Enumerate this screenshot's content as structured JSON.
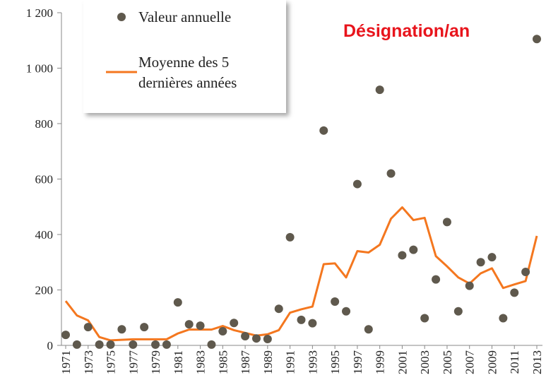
{
  "chart_data": {
    "type": "scatter",
    "annotation": "Désignation/an",
    "x": [
      1971,
      1972,
      1973,
      1974,
      1975,
      1976,
      1977,
      1978,
      1979,
      1980,
      1981,
      1982,
      1983,
      1984,
      1985,
      1986,
      1987,
      1988,
      1989,
      1990,
      1991,
      1992,
      1993,
      1994,
      1995,
      1996,
      1997,
      1998,
      1999,
      2000,
      2001,
      2002,
      2003,
      2004,
      2005,
      2006,
      2007,
      2008,
      2009,
      2010,
      2011,
      2012,
      2013
    ],
    "series": [
      {
        "name": "Valeur annuelle",
        "mark": "dot",
        "color": "#5f594d",
        "values": [
          38,
          3,
          66,
          3,
          3,
          58,
          3,
          66,
          3,
          3,
          155,
          76,
          71,
          3,
          51,
          81,
          33,
          25,
          23,
          132,
          390,
          92,
          80,
          775,
          158,
          123,
          582,
          58,
          922,
          620,
          325,
          345,
          98,
          238,
          445,
          123,
          215,
          300,
          318,
          98,
          190,
          265,
          1105
        ]
      },
      {
        "name": "Moyenne des 5 dernières années",
        "mark": "line",
        "color": "#f4771f",
        "values": [
          160,
          108,
          90,
          30,
          18,
          20,
          22,
          22,
          22,
          22,
          43,
          57,
          57,
          57,
          70,
          55,
          45,
          35,
          40,
          55,
          118,
          130,
          140,
          293,
          296,
          245,
          340,
          335,
          363,
          457,
          498,
          452,
          460,
          322,
          285,
          245,
          223,
          260,
          278,
          207,
          220,
          232,
          395
        ]
      }
    ],
    "xlim": [
      1971,
      2013
    ],
    "xticks": [
      1971,
      1973,
      1975,
      1977,
      1979,
      1981,
      1983,
      1985,
      1987,
      1989,
      1991,
      1993,
      1995,
      1997,
      1999,
      2001,
      2003,
      2005,
      2007,
      2009,
      2011,
      2013
    ],
    "ylim": [
      0,
      1200
    ],
    "yticks": [
      0,
      200,
      400,
      600,
      800,
      {
        "value": 1000,
        "label": "1 000"
      },
      {
        "value": 1200,
        "label": "1 200"
      }
    ]
  }
}
